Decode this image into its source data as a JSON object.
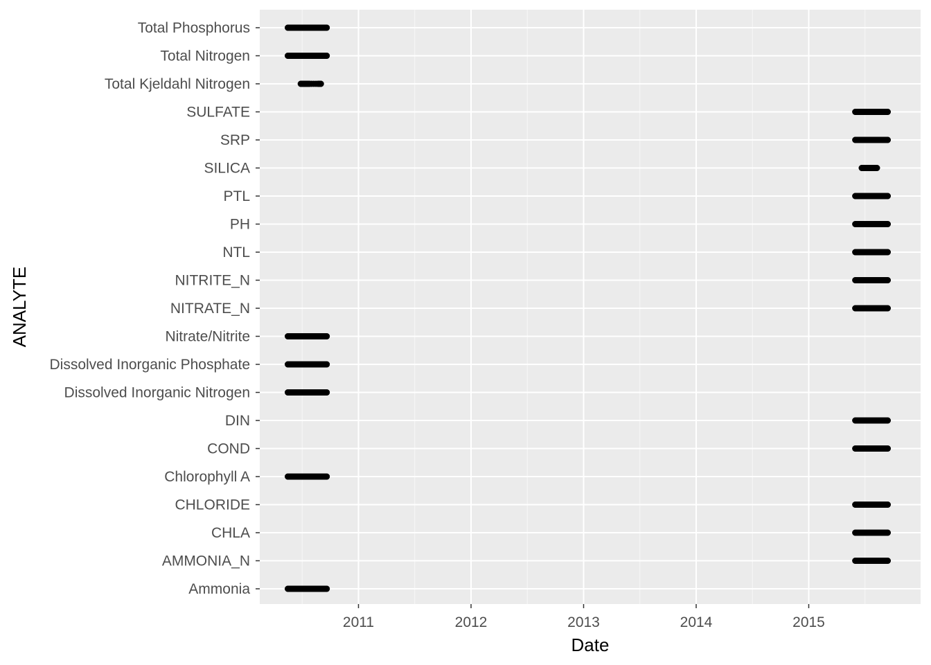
{
  "chart_data": {
    "type": "scatter",
    "title": "",
    "xlabel": "Date",
    "ylabel": "ANALYTE",
    "x_ticks": [
      "2011",
      "2012",
      "2013",
      "2014",
      "2015"
    ],
    "xlim": [
      "2010-04-01",
      "2015-12-31"
    ],
    "grid": true,
    "legend": "none",
    "panel_background": "#ebebeb",
    "point_color": "#000000",
    "categories": [
      "Ammonia",
      "AMMONIA_N",
      "CHLA",
      "CHLORIDE",
      "Chlorophyll A",
      "COND",
      "DIN",
      "Dissolved Inorganic Nitrogen",
      "Dissolved Inorganic Phosphate",
      "Nitrate/Nitrite",
      "NITRATE_N",
      "NITRITE_N",
      "NTL",
      "PH",
      "PTL",
      "SILICA",
      "SRP",
      "SULFATE",
      "Total Kjeldahl Nitrogen",
      "Total Nitrogen",
      "Total Phosphorus"
    ],
    "series": [
      {
        "category": "Ammonia",
        "x": [
          "2010-05-17",
          "2010-06-07",
          "2010-06-28",
          "2010-07-19",
          "2010-08-09",
          "2010-08-30",
          "2010-09-20"
        ]
      },
      {
        "category": "AMMONIA_N",
        "x": [
          "2015-06-01",
          "2015-06-22",
          "2015-07-13",
          "2015-08-03",
          "2015-08-24",
          "2015-09-14"
        ]
      },
      {
        "category": "CHLA",
        "x": [
          "2015-06-01",
          "2015-06-22",
          "2015-07-13",
          "2015-08-03",
          "2015-08-24",
          "2015-09-14"
        ]
      },
      {
        "category": "CHLORIDE",
        "x": [
          "2015-06-01",
          "2015-06-22",
          "2015-07-13",
          "2015-08-03",
          "2015-08-24",
          "2015-09-14"
        ]
      },
      {
        "category": "Chlorophyll A",
        "x": [
          "2010-05-17",
          "2010-06-07",
          "2010-06-28",
          "2010-07-19",
          "2010-08-09",
          "2010-08-30",
          "2010-09-20"
        ]
      },
      {
        "category": "COND",
        "x": [
          "2015-06-01",
          "2015-06-22",
          "2015-07-13",
          "2015-08-03",
          "2015-08-24",
          "2015-09-14"
        ]
      },
      {
        "category": "DIN",
        "x": [
          "2015-06-01",
          "2015-06-22",
          "2015-07-13",
          "2015-08-03",
          "2015-08-24",
          "2015-09-14"
        ]
      },
      {
        "category": "Dissolved Inorganic Nitrogen",
        "x": [
          "2010-05-17",
          "2010-06-07",
          "2010-06-28",
          "2010-07-19",
          "2010-08-09",
          "2010-08-30",
          "2010-09-20"
        ]
      },
      {
        "category": "Dissolved Inorganic Phosphate",
        "x": [
          "2010-05-17",
          "2010-06-07",
          "2010-06-28",
          "2010-07-19",
          "2010-08-09",
          "2010-08-30",
          "2010-09-20"
        ]
      },
      {
        "category": "Nitrate/Nitrite",
        "x": [
          "2010-05-17",
          "2010-06-07",
          "2010-06-28",
          "2010-07-19",
          "2010-08-09",
          "2010-08-30",
          "2010-09-20"
        ]
      },
      {
        "category": "NITRATE_N",
        "x": [
          "2015-06-01",
          "2015-06-22",
          "2015-07-13",
          "2015-08-03",
          "2015-08-24",
          "2015-09-14"
        ]
      },
      {
        "category": "NITRITE_N",
        "x": [
          "2015-06-01",
          "2015-06-22",
          "2015-07-13",
          "2015-08-03",
          "2015-08-24",
          "2015-09-14"
        ]
      },
      {
        "category": "NTL",
        "x": [
          "2015-06-01",
          "2015-06-22",
          "2015-07-13",
          "2015-08-03",
          "2015-08-24",
          "2015-09-14"
        ]
      },
      {
        "category": "PH",
        "x": [
          "2015-06-01",
          "2015-06-22",
          "2015-07-13",
          "2015-08-03",
          "2015-08-24",
          "2015-09-14"
        ]
      },
      {
        "category": "PTL",
        "x": [
          "2015-06-01",
          "2015-06-22",
          "2015-07-13",
          "2015-08-03",
          "2015-08-24",
          "2015-09-14"
        ]
      },
      {
        "category": "SILICA",
        "x": [
          "2015-06-22",
          "2015-07-05",
          "2015-07-28",
          "2015-08-10"
        ]
      },
      {
        "category": "SRP",
        "x": [
          "2015-06-01",
          "2015-06-22",
          "2015-07-13",
          "2015-08-03",
          "2015-08-24",
          "2015-09-14"
        ]
      },
      {
        "category": "SULFATE",
        "x": [
          "2015-06-01",
          "2015-06-22",
          "2015-07-13",
          "2015-08-03",
          "2015-08-24",
          "2015-09-14"
        ]
      },
      {
        "category": "Total Kjeldahl Nitrogen",
        "x": [
          "2010-06-28",
          "2010-07-12",
          "2010-07-26",
          "2010-08-23",
          "2010-09-01"
        ]
      },
      {
        "category": "Total Nitrogen",
        "x": [
          "2010-05-17",
          "2010-06-07",
          "2010-06-28",
          "2010-07-19",
          "2010-08-09",
          "2010-08-30",
          "2010-09-20"
        ]
      },
      {
        "category": "Total Phosphorus",
        "x": [
          "2010-05-17",
          "2010-06-07",
          "2010-06-28",
          "2010-07-19",
          "2010-08-09",
          "2010-08-30",
          "2010-09-20"
        ]
      }
    ]
  }
}
